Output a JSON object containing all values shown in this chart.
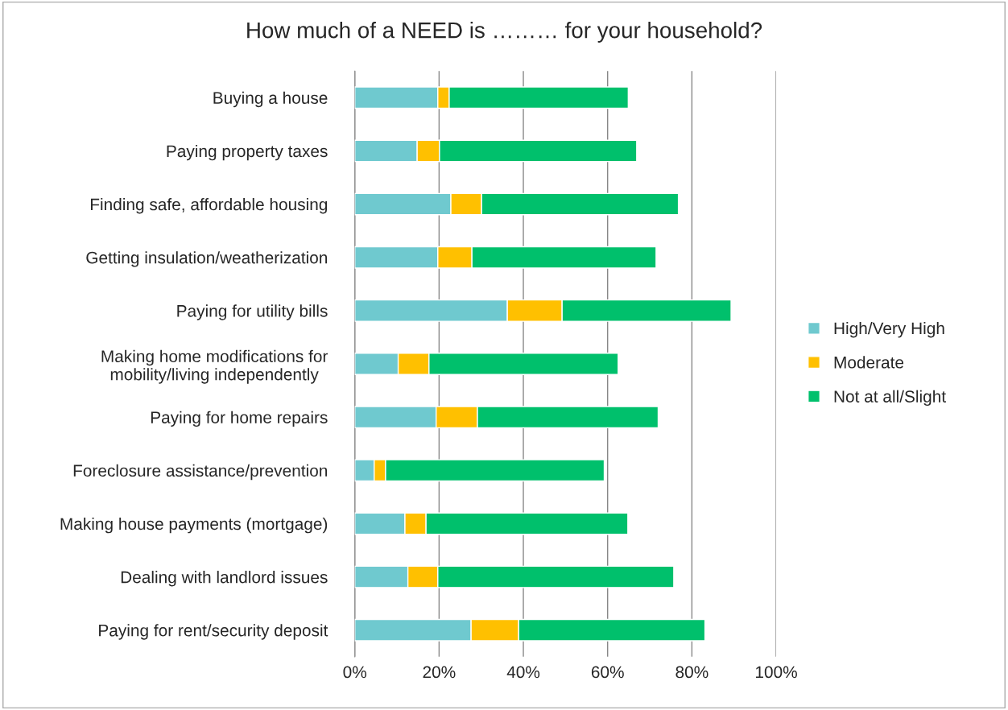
{
  "chart_data": {
    "type": "bar",
    "orientation": "horizontal",
    "stacked": true,
    "title": "How much of a NEED is ……… for your household?",
    "categories": [
      "Buying a house",
      "Paying property taxes",
      "Finding safe, affordable housing",
      "Getting insulation/weatherization",
      "Paying for utility bills",
      "Making home modifications for\nmobility/living independently",
      "Paying for home repairs",
      "Foreclosure assistance/prevention",
      "Making house payments (mortgage)",
      "Dealing with landlord issues",
      "Paying for rent/security deposit"
    ],
    "series": [
      {
        "name": "High/Very High",
        "color": "#6fc9cf",
        "values": [
          19.7,
          14.8,
          22.8,
          19.7,
          36.2,
          10.3,
          19.3,
          4.6,
          11.9,
          12.6,
          27.6
        ]
      },
      {
        "name": "Moderate",
        "color": "#ffc000",
        "values": [
          2.7,
          5.3,
          7.3,
          8.1,
          13.0,
          7.3,
          9.8,
          2.7,
          5.0,
          7.1,
          11.3
        ]
      },
      {
        "name": "Not at all/Slight",
        "color": "#00c06c",
        "values": [
          42.5,
          46.8,
          46.7,
          43.7,
          40.1,
          44.9,
          42.9,
          51.9,
          47.9,
          56.0,
          44.2
        ]
      }
    ],
    "xlim": [
      0,
      100
    ],
    "xticks": [
      {
        "value": 0,
        "label": "0%"
      },
      {
        "value": 20,
        "label": "20%"
      },
      {
        "value": 40,
        "label": "40%"
      },
      {
        "value": 60,
        "label": "60%"
      },
      {
        "value": 80,
        "label": "80%"
      },
      {
        "value": 100,
        "label": "100%"
      }
    ],
    "grid": "x",
    "legend": "right"
  }
}
